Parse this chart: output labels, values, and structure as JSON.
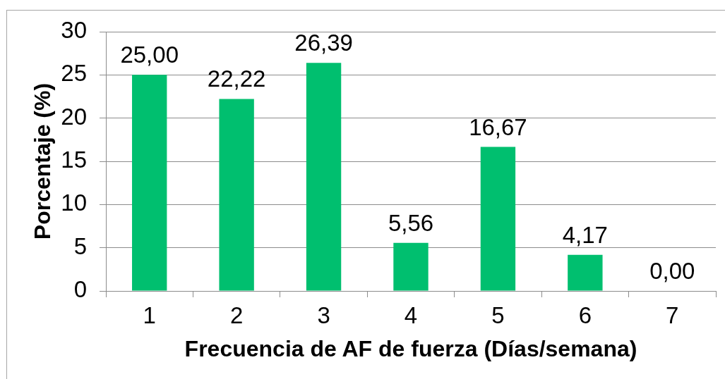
{
  "chart_data": {
    "type": "bar",
    "categories": [
      "1",
      "2",
      "3",
      "4",
      "5",
      "6",
      "7"
    ],
    "values": [
      25.0,
      22.22,
      26.39,
      5.56,
      16.67,
      4.17,
      0.0
    ],
    "value_labels": [
      "25,00",
      "22,22",
      "26,39",
      "5,56",
      "16,67",
      "4,17",
      "0,00"
    ],
    "color": "#00bf6f",
    "xlabel": "Frecuencia de AF de fuerza (Días/semana)",
    "ylabel": "Porcentaje (%)",
    "ylim": [
      0,
      30
    ],
    "yticks": [
      0,
      5,
      10,
      15,
      20,
      25,
      30
    ],
    "grid": "y"
  }
}
